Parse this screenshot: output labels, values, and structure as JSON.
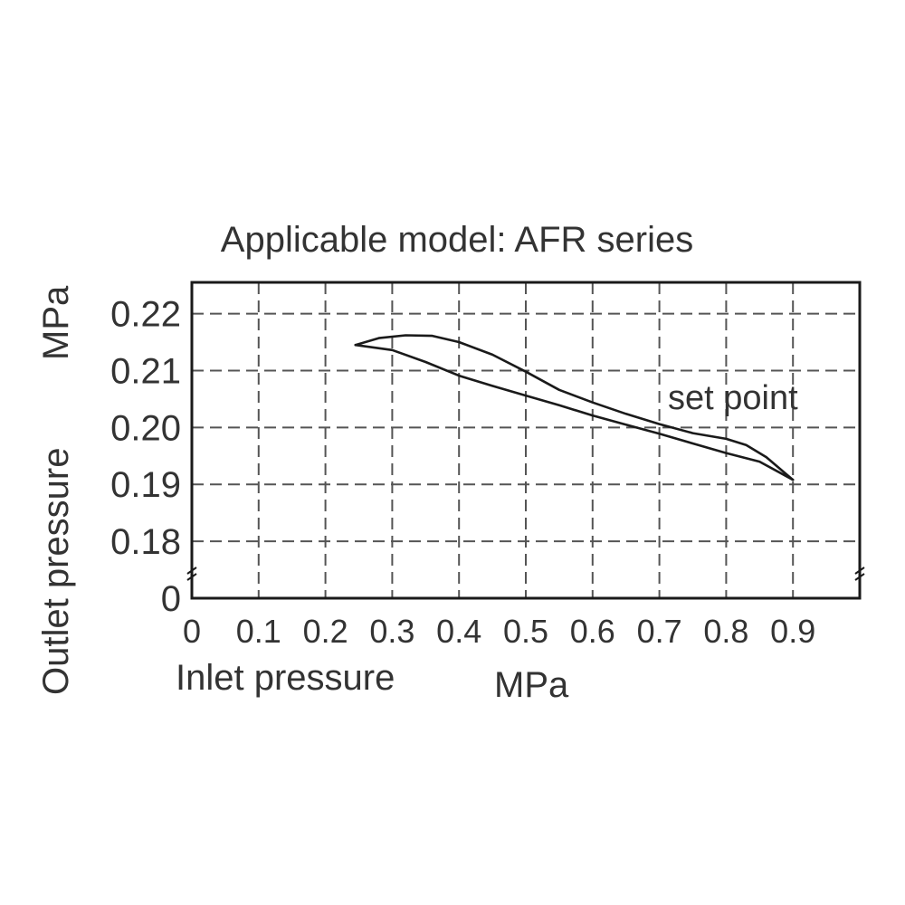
{
  "chart_data": {
    "type": "line",
    "title": "Applicable model: AFR series",
    "xlabel": "Inlet pressure",
    "xunit": "MPa",
    "ylabel": "Outlet pressure",
    "yunit": "MPa",
    "x_ticks": [
      "0",
      "0.1",
      "0.2",
      "0.3",
      "0.4",
      "0.5",
      "0.6",
      "0.7",
      "0.8",
      "0.9"
    ],
    "x_tick_values": [
      0,
      0.1,
      0.2,
      0.3,
      0.4,
      0.5,
      0.6,
      0.7,
      0.8,
      0.9
    ],
    "xlim": [
      0,
      1.0
    ],
    "y_ticks": [
      "0",
      "0.18",
      "0.19",
      "0.20",
      "0.21",
      "0.22"
    ],
    "y_tick_values": [
      0.17,
      0.18,
      0.19,
      0.2,
      0.21,
      0.22
    ],
    "ylim": [
      0.17,
      0.2255
    ],
    "y_axis_break": true,
    "grid": true,
    "annotations": [
      {
        "text": "set point",
        "x": 0.7,
        "y": 0.2
      }
    ],
    "series": [
      {
        "x": [
          0.245,
          0.28,
          0.32,
          0.36,
          0.4,
          0.45,
          0.5,
          0.55,
          0.6,
          0.65,
          0.7,
          0.75,
          0.8,
          0.83,
          0.86,
          0.9
        ],
        "values": [
          0.2145,
          0.2157,
          0.2162,
          0.2161,
          0.215,
          0.2128,
          0.2098,
          0.2066,
          0.2044,
          0.2024,
          0.2006,
          0.199,
          0.198,
          0.1969,
          0.1948,
          0.1908
        ]
      },
      {
        "x": [
          0.245,
          0.3,
          0.35,
          0.4,
          0.45,
          0.5,
          0.55,
          0.6,
          0.65,
          0.7,
          0.75,
          0.8,
          0.85,
          0.9
        ],
        "values": [
          0.2145,
          0.2136,
          0.2115,
          0.2091,
          0.2073,
          0.2056,
          0.2039,
          0.2021,
          0.2005,
          0.1989,
          0.1972,
          0.1955,
          0.194,
          0.1908
        ]
      }
    ]
  }
}
